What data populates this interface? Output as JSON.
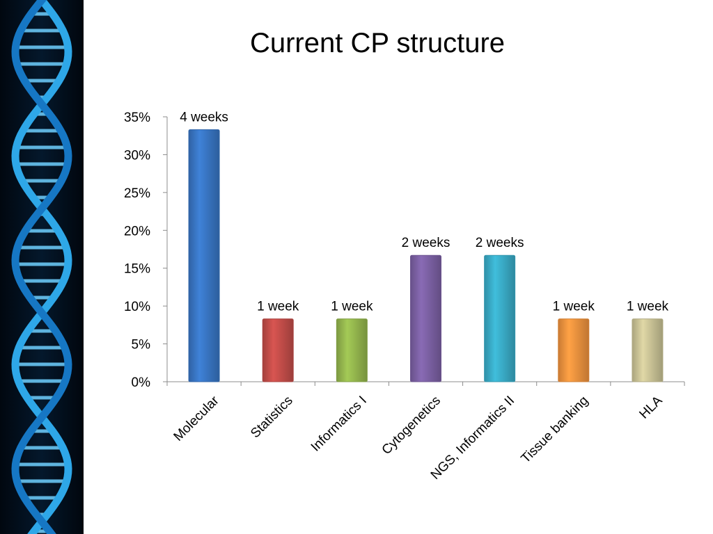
{
  "slide": {
    "title": "Current CP structure"
  },
  "decoration": {
    "dna_panel_icon": "dna-helix-icon",
    "panel_bg": "#020a14",
    "helix_color": "#2ea7e8"
  },
  "chart_data": {
    "type": "bar",
    "title": "",
    "xlabel": "",
    "ylabel": "",
    "ylim": [
      0,
      35
    ],
    "y_ticks": [
      "0%",
      "5%",
      "10%",
      "15%",
      "20%",
      "25%",
      "30%",
      "35%"
    ],
    "y_unit": "percent",
    "grid": false,
    "legend": "none",
    "categories": [
      "Molecular",
      "Statistics",
      "Informatics I",
      "Cytogenetics",
      "NGS, Informatics II",
      "Tissue banking",
      "HLA"
    ],
    "values": [
      33.3,
      8.3,
      8.3,
      16.7,
      16.7,
      8.3,
      8.3
    ],
    "data_labels": [
      "4 weeks",
      "1 week",
      "1 week",
      "2 weeks",
      "2 weeks",
      "1 week",
      "1 week"
    ],
    "colors": [
      "#3a78c8",
      "#c84f4b",
      "#98bb50",
      "#7f63a8",
      "#3bb0cc",
      "#f69640",
      "#cfc89a"
    ]
  }
}
